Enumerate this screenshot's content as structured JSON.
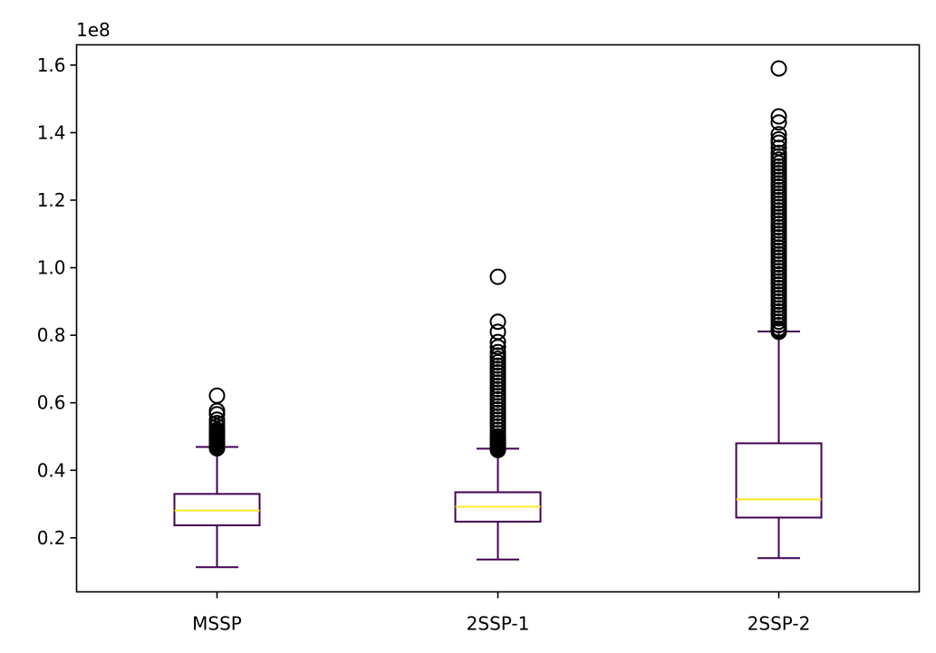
{
  "chart_data": {
    "type": "box",
    "title": "",
    "xlabel": "",
    "ylabel": "",
    "y_offset_label": "1e8",
    "y_scale_factor": 100000000,
    "ylim": [
      0.04,
      1.66
    ],
    "yticks": [
      0.2,
      0.4,
      0.6,
      0.8,
      1.0,
      1.2,
      1.4,
      1.6
    ],
    "ytick_labels": [
      "0.2",
      "0.4",
      "0.6",
      "0.8",
      "1.0",
      "1.2",
      "1.4",
      "1.6"
    ],
    "grid": false,
    "colors": {
      "box": "#440154",
      "median": "#fde725",
      "flier": "#000000"
    },
    "categories": [
      "MSSP",
      "2SSP-1",
      "2SSP-2"
    ],
    "boxes": [
      {
        "label": "MSSP",
        "whisker_low": 0.113,
        "q1": 0.237,
        "median": 0.281,
        "q3": 0.33,
        "whisker_high": 0.469,
        "fliers": [
          0.465,
          0.47,
          0.475,
          0.48,
          0.485,
          0.49,
          0.495,
          0.5,
          0.505,
          0.51,
          0.515,
          0.52,
          0.53,
          0.54,
          0.55,
          0.566,
          0.576,
          0.621
        ]
      },
      {
        "label": "2SSP-1",
        "whisker_low": 0.136,
        "q1": 0.248,
        "median": 0.292,
        "q3": 0.335,
        "whisker_high": 0.464,
        "fliers": [
          0.46,
          0.465,
          0.47,
          0.475,
          0.48,
          0.485,
          0.49,
          0.495,
          0.5,
          0.51,
          0.52,
          0.53,
          0.54,
          0.55,
          0.56,
          0.57,
          0.58,
          0.59,
          0.6,
          0.61,
          0.62,
          0.63,
          0.64,
          0.65,
          0.66,
          0.67,
          0.68,
          0.69,
          0.7,
          0.71,
          0.72,
          0.73,
          0.74,
          0.75,
          0.765,
          0.78,
          0.81,
          0.84,
          0.973
        ]
      },
      {
        "label": "2SSP-2",
        "whisker_low": 0.14,
        "q1": 0.26,
        "median": 0.314,
        "q3": 0.48,
        "whisker_high": 0.811,
        "fliers": [
          0.81,
          0.815,
          0.82,
          0.83,
          0.84,
          0.85,
          0.86,
          0.87,
          0.88,
          0.89,
          0.9,
          0.91,
          0.92,
          0.93,
          0.94,
          0.95,
          0.96,
          0.97,
          0.98,
          0.99,
          1.0,
          1.01,
          1.02,
          1.03,
          1.04,
          1.05,
          1.06,
          1.07,
          1.08,
          1.09,
          1.1,
          1.11,
          1.12,
          1.13,
          1.14,
          1.15,
          1.16,
          1.17,
          1.18,
          1.19,
          1.2,
          1.21,
          1.22,
          1.23,
          1.24,
          1.25,
          1.26,
          1.27,
          1.28,
          1.29,
          1.3,
          1.31,
          1.32,
          1.33,
          1.34,
          1.355,
          1.37,
          1.38,
          1.395,
          1.43,
          1.448,
          1.59
        ]
      }
    ]
  }
}
